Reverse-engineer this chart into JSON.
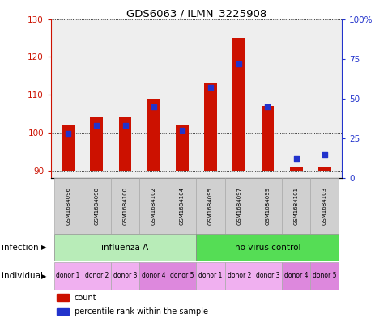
{
  "title": "GDS6063 / ILMN_3225908",
  "samples": [
    "GSM1684096",
    "GSM1684098",
    "GSM1684100",
    "GSM1684102",
    "GSM1684104",
    "GSM1684095",
    "GSM1684097",
    "GSM1684099",
    "GSM1684101",
    "GSM1684103"
  ],
  "counts": [
    102,
    104,
    104,
    109,
    102,
    113,
    125,
    107,
    91,
    91
  ],
  "percentiles": [
    28,
    33,
    33,
    45,
    30,
    57,
    72,
    45,
    12,
    15
  ],
  "ylim_left": [
    88,
    130
  ],
  "ylim_right": [
    0,
    100
  ],
  "yticks_left": [
    90,
    100,
    110,
    120,
    130
  ],
  "yticks_right": [
    0,
    25,
    50,
    75,
    100
  ],
  "infection_groups": [
    {
      "label": "influenza A",
      "start": 0,
      "end": 5,
      "color": "#b8ecb8"
    },
    {
      "label": "no virus control",
      "start": 5,
      "end": 10,
      "color": "#55dd55"
    }
  ],
  "individual_labels": [
    "donor 1",
    "donor 2",
    "donor 3",
    "donor 4",
    "donor 5",
    "donor 1",
    "donor 2",
    "donor 3",
    "donor 4",
    "donor 5"
  ],
  "individual_colors": [
    "#f0b0f0",
    "#f0b0f0",
    "#f0b0f0",
    "#dd88dd",
    "#dd88dd",
    "#f0b0f0",
    "#f0b0f0",
    "#f0b0f0",
    "#dd88dd",
    "#dd88dd"
  ],
  "bar_color": "#cc1100",
  "dot_color": "#2233cc",
  "bar_bottom": 90,
  "bg_color": "#ffffff",
  "plot_bg": "#eeeeee",
  "axis_color_left": "#cc1100",
  "axis_color_right": "#2233cc",
  "legend_items": [
    {
      "color": "#cc1100",
      "label": "count"
    },
    {
      "color": "#2233cc",
      "label": "percentile rank within the sample"
    }
  ]
}
